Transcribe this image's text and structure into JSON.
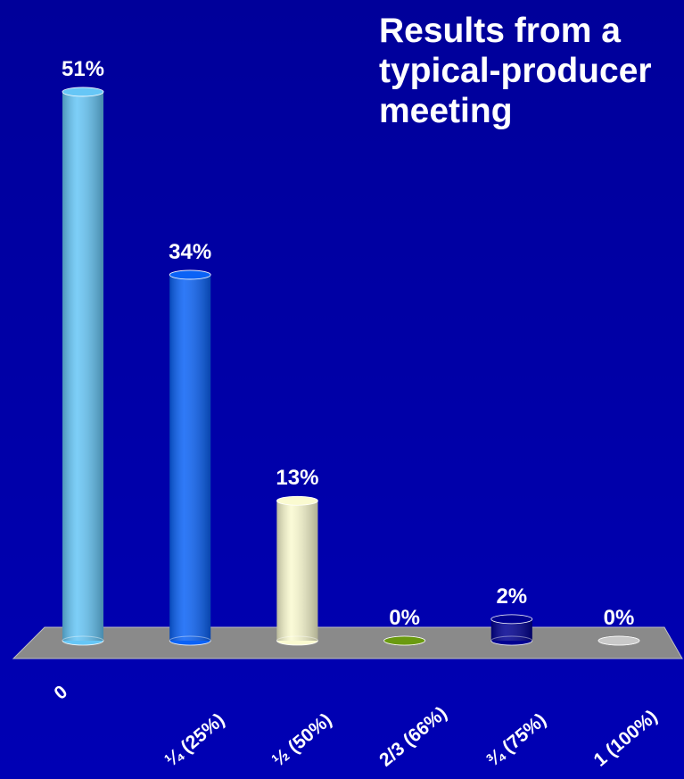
{
  "chart_data": {
    "type": "bar3d",
    "title": "Results from a typical-producer meeting",
    "categories": [
      "0",
      "¼ (25%)",
      "½ (50%)",
      "2/3 (66%)",
      "¾ (75%)",
      "1 (100%)"
    ],
    "values": [
      51,
      34,
      13,
      0,
      2,
      0
    ],
    "value_labels": [
      "51%",
      "34%",
      "13%",
      "0%",
      "2%",
      "0%"
    ],
    "colors": [
      "#66c6f6",
      "#0a62f6",
      "#fafad0",
      "#6a9a10",
      "#000090",
      "#c8c8c8"
    ]
  }
}
